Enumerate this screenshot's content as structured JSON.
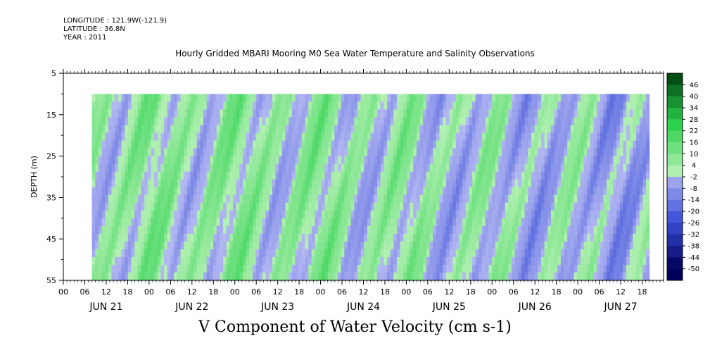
{
  "header": {
    "longitude": "LONGITUDE : 121.9W(-121.9)",
    "latitude": "LATITUDE : 36.8N",
    "year": "YEAR : 2011"
  },
  "title": "Hourly Gridded MBARI Mooring M0 Sea Water Temperature and Salinity Observations",
  "chart_data": {
    "type": "heatmap",
    "variable": "V Component of Water Velocity (cm s-1)",
    "ylabel": "DEPTH (m)",
    "y_ticks": [
      5,
      15,
      25,
      35,
      45,
      55
    ],
    "ylim": [
      5,
      55
    ],
    "y_inverted": true,
    "data_depth_range": [
      10,
      55
    ],
    "hour_ticks": [
      "00",
      "06",
      "12",
      "18",
      "00",
      "06",
      "12",
      "18",
      "00",
      "06",
      "12",
      "18",
      "00",
      "06",
      "12",
      "18",
      "00",
      "06",
      "12",
      "18",
      "00",
      "06",
      "12",
      "18",
      "00",
      "06",
      "12",
      "18"
    ],
    "day_labels": [
      "JUN 21",
      "JUN 22",
      "JUN 23",
      "JUN 24",
      "JUN 25",
      "JUN 26",
      "JUN 27"
    ],
    "data_start_hour": 8,
    "data_end_hour": 164,
    "colorbar": {
      "levels": [
        -50,
        -44,
        -38,
        -32,
        -26,
        -20,
        -14,
        -8,
        -2,
        4,
        10,
        16,
        22,
        28,
        34,
        40,
        46
      ],
      "colors": {
        "neg_deep": "#00005a",
        "neg_mid": "#3a4fd8",
        "neg_light": "#b4b8f2",
        "pos_light": "#b4f0b4",
        "pos_mid": "#2ed24e",
        "pos_deep": "#004a12"
      }
    }
  }
}
